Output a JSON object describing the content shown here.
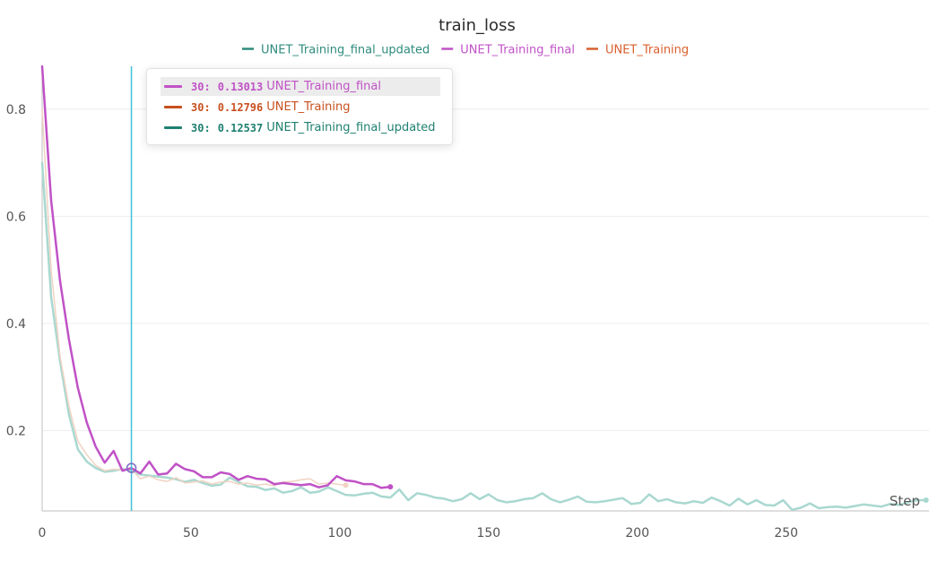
{
  "chart_data": {
    "type": "line",
    "title": "train_loss",
    "xlabel": "Step",
    "ylabel": "",
    "xlim": [
      0,
      298
    ],
    "ylim": [
      0.05,
      0.88
    ],
    "x_ticks": [
      0,
      50,
      100,
      150,
      200,
      250
    ],
    "y_ticks": [
      0.2,
      0.4,
      0.6,
      0.8
    ],
    "grid": true,
    "legend_position": "top-center",
    "series": [
      {
        "name": "UNET_Training_final_updated",
        "color": "#2e8b7d",
        "x": [
          0,
          3,
          6,
          9,
          12,
          15,
          18,
          21,
          24,
          27,
          30,
          33,
          36,
          39,
          42,
          45,
          48,
          51,
          54,
          57,
          60,
          63,
          66,
          69,
          72,
          75,
          78,
          81,
          84,
          87,
          90,
          93,
          96,
          99,
          102,
          105,
          108,
          111,
          114,
          117,
          120,
          123,
          126,
          129,
          132,
          135,
          138,
          141,
          144,
          147,
          150,
          153,
          156,
          159,
          162,
          165,
          168,
          171,
          174,
          177,
          180,
          183,
          186,
          189,
          192,
          195,
          198,
          201,
          204,
          207,
          210,
          213,
          216,
          219,
          222,
          225,
          228,
          231,
          234,
          237,
          240,
          243,
          246,
          249,
          252,
          255,
          258,
          261,
          264,
          267,
          270,
          273,
          276,
          279,
          282,
          285,
          288,
          291,
          294,
          297
        ],
        "values": [
          0.7,
          0.45,
          0.33,
          0.23,
          0.165,
          0.142,
          0.13,
          0.123,
          0.125,
          0.128,
          0.125,
          0.118,
          0.116,
          0.114,
          0.112,
          0.109,
          0.104,
          0.108,
          0.102,
          0.097,
          0.099,
          0.112,
          0.104,
          0.096,
          0.095,
          0.089,
          0.092,
          0.084,
          0.087,
          0.094,
          0.084,
          0.086,
          0.094,
          0.087,
          0.08,
          0.079,
          0.082,
          0.084,
          0.077,
          0.075,
          0.09,
          0.07,
          0.083,
          0.08,
          0.075,
          0.073,
          0.068,
          0.072,
          0.083,
          0.072,
          0.081,
          0.07,
          0.066,
          0.068,
          0.072,
          0.074,
          0.083,
          0.072,
          0.066,
          0.071,
          0.077,
          0.067,
          0.066,
          0.068,
          0.071,
          0.074,
          0.063,
          0.065,
          0.081,
          0.068,
          0.072,
          0.066,
          0.064,
          0.068,
          0.065,
          0.075,
          0.068,
          0.06,
          0.073,
          0.062,
          0.07,
          0.061,
          0.06,
          0.07,
          0.052,
          0.056,
          0.064,
          0.055,
          0.057,
          0.058,
          0.056,
          0.059,
          0.062,
          0.06,
          0.058,
          0.063,
          0.061,
          0.066,
          0.07,
          0.07
        ]
      },
      {
        "name": "UNET_Training_final",
        "color": "#c052c6",
        "x": [
          0,
          3,
          6,
          9,
          12,
          15,
          18,
          21,
          24,
          27,
          30,
          33,
          36,
          39,
          42,
          45,
          48,
          51,
          54,
          57,
          60,
          63,
          66,
          69,
          72,
          75,
          78,
          81,
          84,
          87,
          90,
          93,
          96,
          99,
          102,
          105,
          108,
          111,
          114,
          117
        ],
        "values": [
          0.88,
          0.63,
          0.48,
          0.37,
          0.28,
          0.215,
          0.17,
          0.14,
          0.162,
          0.125,
          0.13,
          0.12,
          0.142,
          0.118,
          0.12,
          0.138,
          0.128,
          0.124,
          0.113,
          0.113,
          0.122,
          0.119,
          0.108,
          0.115,
          0.11,
          0.109,
          0.1,
          0.102,
          0.1,
          0.098,
          0.1,
          0.094,
          0.098,
          0.115,
          0.107,
          0.105,
          0.1,
          0.1,
          0.093,
          0.095
        ]
      },
      {
        "name": "UNET_Training",
        "color": "#d9602e",
        "x": [
          0,
          3,
          6,
          9,
          12,
          15,
          18,
          21,
          24,
          27,
          30,
          33,
          36,
          39,
          42,
          45,
          48,
          51,
          54,
          57,
          60,
          63,
          66,
          69,
          72,
          75,
          78,
          81,
          84,
          87,
          90,
          93,
          96,
          99,
          102
        ],
        "values": [
          0.8,
          0.5,
          0.34,
          0.245,
          0.18,
          0.155,
          0.135,
          0.125,
          0.128,
          0.126,
          0.128,
          0.11,
          0.115,
          0.108,
          0.105,
          0.112,
          0.102,
          0.104,
          0.106,
          0.1,
          0.104,
          0.105,
          0.1,
          0.102,
          0.098,
          0.1,
          0.097,
          0.104,
          0.105,
          0.108,
          0.11,
          0.1,
          0.102,
          0.1,
          0.098
        ]
      }
    ],
    "hover": {
      "step": 30,
      "rows": [
        {
          "step": "30:",
          "value": "0.13013",
          "name": "UNET_Training_final",
          "color": "#c052c6",
          "highlight": true
        },
        {
          "step": "30:",
          "value": "0.12796",
          "name": "UNET_Training",
          "color": "#c8501f",
          "highlight": false
        },
        {
          "step": "30:",
          "value": "0.12537",
          "name": "UNET_Training_final_updated",
          "color": "#1f8070",
          "highlight": false
        }
      ]
    }
  },
  "colors": {
    "cursor_line": "#3fc1d6",
    "final_updated_faded": "#a9d8d0",
    "training_faded": "#f0d3c2"
  }
}
